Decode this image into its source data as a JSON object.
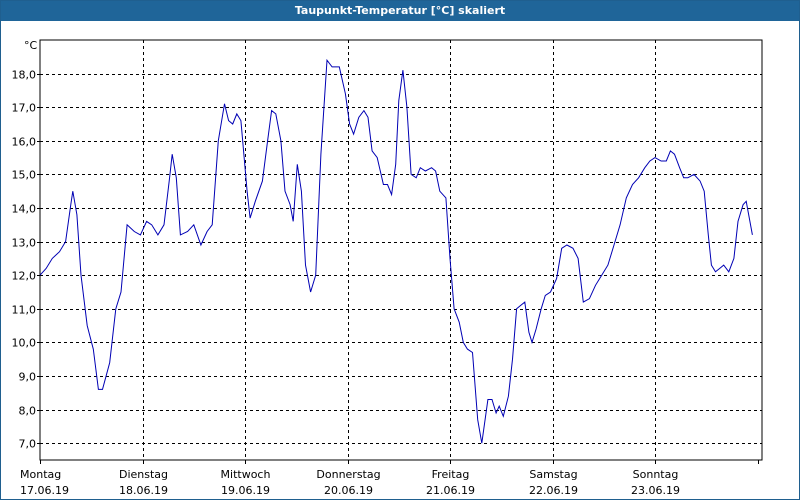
{
  "window_title": "Taupunkt-Temperatur [°C] skaliert",
  "chart_data": {
    "type": "line",
    "title": "Taupunkt-Temperatur [°C] skaliert",
    "ylabel": "°C",
    "xlabel": "",
    "ylim": [
      6.5,
      19.0
    ],
    "xlim": [
      0,
      7
    ],
    "grid": true,
    "yticks": [
      7,
      8,
      9,
      10,
      11,
      12,
      13,
      14,
      15,
      16,
      17,
      18
    ],
    "ytick_labels": [
      "7,0",
      "8,0",
      "9,0",
      "10,0",
      "11,0",
      "12,0",
      "13,0",
      "14,0",
      "15,0",
      "16,0",
      "17,0",
      "18,0"
    ],
    "days": [
      {
        "weekday": "Montag",
        "date": "17.06.19"
      },
      {
        "weekday": "Dienstag",
        "date": "18.06.19"
      },
      {
        "weekday": "Mittwoch",
        "date": "19.06.19"
      },
      {
        "weekday": "Donnerstag",
        "date": "20.06.19"
      },
      {
        "weekday": "Freitag",
        "date": "21.06.19"
      },
      {
        "weekday": "Samstag",
        "date": "22.06.19"
      },
      {
        "weekday": "Sonntag",
        "date": "23.06.19"
      }
    ],
    "series": [
      {
        "color": "#0000b4",
        "points": [
          [
            0.0,
            12.0
          ],
          [
            0.06,
            12.2
          ],
          [
            0.12,
            12.5
          ],
          [
            0.19,
            12.7
          ],
          [
            0.25,
            13.0
          ],
          [
            0.3,
            14.1
          ],
          [
            0.32,
            14.5
          ],
          [
            0.36,
            13.8
          ],
          [
            0.4,
            12.0
          ],
          [
            0.46,
            10.5
          ],
          [
            0.52,
            9.8
          ],
          [
            0.57,
            8.6
          ],
          [
            0.61,
            8.6
          ],
          [
            0.68,
            9.4
          ],
          [
            0.74,
            11.0
          ],
          [
            0.79,
            11.5
          ],
          [
            0.85,
            13.5
          ],
          [
            0.92,
            13.3
          ],
          [
            0.98,
            13.2
          ],
          [
            1.04,
            13.6
          ],
          [
            1.09,
            13.5
          ],
          [
            1.15,
            13.2
          ],
          [
            1.21,
            13.5
          ],
          [
            1.26,
            14.8
          ],
          [
            1.29,
            15.6
          ],
          [
            1.33,
            14.9
          ],
          [
            1.37,
            13.2
          ],
          [
            1.44,
            13.3
          ],
          [
            1.5,
            13.5
          ],
          [
            1.57,
            12.9
          ],
          [
            1.63,
            13.3
          ],
          [
            1.68,
            13.5
          ],
          [
            1.74,
            16.0
          ],
          [
            1.8,
            17.1
          ],
          [
            1.84,
            16.6
          ],
          [
            1.88,
            16.5
          ],
          [
            1.92,
            16.8
          ],
          [
            1.96,
            16.6
          ],
          [
            2.02,
            14.5
          ],
          [
            2.05,
            13.7
          ],
          [
            2.1,
            14.2
          ],
          [
            2.17,
            14.8
          ],
          [
            2.22,
            16.0
          ],
          [
            2.26,
            16.9
          ],
          [
            2.3,
            16.8
          ],
          [
            2.35,
            16.0
          ],
          [
            2.39,
            14.5
          ],
          [
            2.44,
            14.1
          ],
          [
            2.47,
            13.6
          ],
          [
            2.51,
            15.3
          ],
          [
            2.55,
            14.5
          ],
          [
            2.59,
            12.3
          ],
          [
            2.64,
            11.5
          ],
          [
            2.69,
            12.0
          ],
          [
            2.74,
            15.6
          ],
          [
            2.8,
            18.4
          ],
          [
            2.85,
            18.2
          ],
          [
            2.92,
            18.2
          ],
          [
            2.98,
            17.4
          ],
          [
            3.02,
            16.5
          ],
          [
            3.06,
            16.2
          ],
          [
            3.11,
            16.7
          ],
          [
            3.16,
            16.9
          ],
          [
            3.2,
            16.7
          ],
          [
            3.24,
            15.7
          ],
          [
            3.29,
            15.5
          ],
          [
            3.35,
            14.7
          ],
          [
            3.39,
            14.7
          ],
          [
            3.43,
            14.4
          ],
          [
            3.47,
            15.3
          ],
          [
            3.5,
            17.2
          ],
          [
            3.54,
            18.1
          ],
          [
            3.58,
            17.0
          ],
          [
            3.62,
            15.0
          ],
          [
            3.67,
            14.9
          ],
          [
            3.71,
            15.2
          ],
          [
            3.76,
            15.1
          ],
          [
            3.82,
            15.2
          ],
          [
            3.86,
            15.1
          ],
          [
            3.9,
            14.5
          ],
          [
            3.96,
            14.3
          ],
          [
            4.0,
            12.5
          ],
          [
            4.04,
            11.0
          ],
          [
            4.09,
            10.6
          ],
          [
            4.13,
            10.0
          ],
          [
            4.17,
            9.8
          ],
          [
            4.22,
            9.7
          ],
          [
            4.27,
            7.7
          ],
          [
            4.31,
            7.0
          ],
          [
            4.37,
            8.3
          ],
          [
            4.41,
            8.3
          ],
          [
            4.45,
            7.9
          ],
          [
            4.48,
            8.1
          ],
          [
            4.52,
            7.8
          ],
          [
            4.57,
            8.4
          ],
          [
            4.61,
            9.5
          ],
          [
            4.65,
            11.0
          ],
          [
            4.69,
            11.1
          ],
          [
            4.73,
            11.2
          ],
          [
            4.77,
            10.3
          ],
          [
            4.8,
            10.0
          ],
          [
            4.84,
            10.4
          ],
          [
            4.89,
            11.0
          ],
          [
            4.93,
            11.4
          ],
          [
            4.98,
            11.5
          ],
          [
            5.04,
            11.9
          ],
          [
            5.09,
            12.8
          ],
          [
            5.14,
            12.9
          ],
          [
            5.2,
            12.8
          ],
          [
            5.25,
            12.5
          ],
          [
            5.3,
            11.2
          ],
          [
            5.36,
            11.3
          ],
          [
            5.42,
            11.7
          ],
          [
            5.48,
            12.0
          ],
          [
            5.54,
            12.3
          ],
          [
            5.6,
            12.9
          ],
          [
            5.66,
            13.5
          ],
          [
            5.72,
            14.3
          ],
          [
            5.78,
            14.7
          ],
          [
            5.84,
            14.9
          ],
          [
            5.9,
            15.2
          ],
          [
            5.95,
            15.4
          ],
          [
            6.0,
            15.5
          ],
          [
            6.06,
            15.4
          ],
          [
            6.11,
            15.4
          ],
          [
            6.15,
            15.7
          ],
          [
            6.19,
            15.6
          ],
          [
            6.24,
            15.2
          ],
          [
            6.28,
            14.9
          ],
          [
            6.32,
            14.9
          ],
          [
            6.38,
            15.0
          ],
          [
            6.44,
            14.8
          ],
          [
            6.48,
            14.5
          ],
          [
            6.52,
            13.2
          ],
          [
            6.55,
            12.3
          ],
          [
            6.59,
            12.1
          ],
          [
            6.63,
            12.2
          ],
          [
            6.67,
            12.3
          ],
          [
            6.72,
            12.1
          ],
          [
            6.77,
            12.5
          ],
          [
            6.81,
            13.6
          ],
          [
            6.86,
            14.1
          ],
          [
            6.89,
            14.2
          ],
          [
            6.95,
            13.2
          ]
        ]
      }
    ]
  }
}
